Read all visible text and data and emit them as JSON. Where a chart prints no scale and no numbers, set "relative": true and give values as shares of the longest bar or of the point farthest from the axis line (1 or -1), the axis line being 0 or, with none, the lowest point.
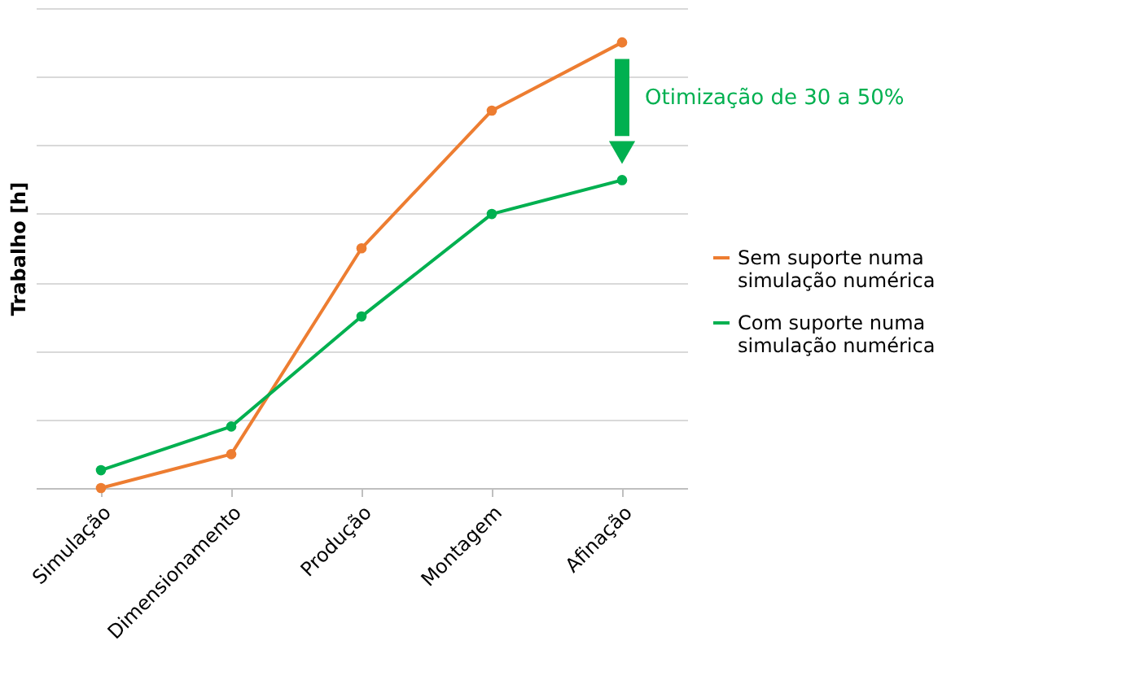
{
  "chart_data": {
    "type": "line",
    "relative": true,
    "ylabel": "Trabalho [h]",
    "categories": [
      "Simulação",
      "Dimensionamento",
      "Produção",
      "Montagem",
      "Afinação"
    ],
    "series": [
      {
        "name": "Sem suporte numa simulação numérica",
        "color": "#ed7d31",
        "values": [
          0,
          0.076,
          0.538,
          0.847,
          1
        ]
      },
      {
        "name": "Com suporte numa simulação numérica",
        "color": "#00b050",
        "values": [
          0.04,
          0.138,
          0.385,
          0.615,
          0.691
        ]
      }
    ],
    "annotations": [
      "Otimização de 30 a 50%"
    ],
    "marker": "circle",
    "line_style": "solid",
    "grid": "y",
    "legend": "right"
  }
}
